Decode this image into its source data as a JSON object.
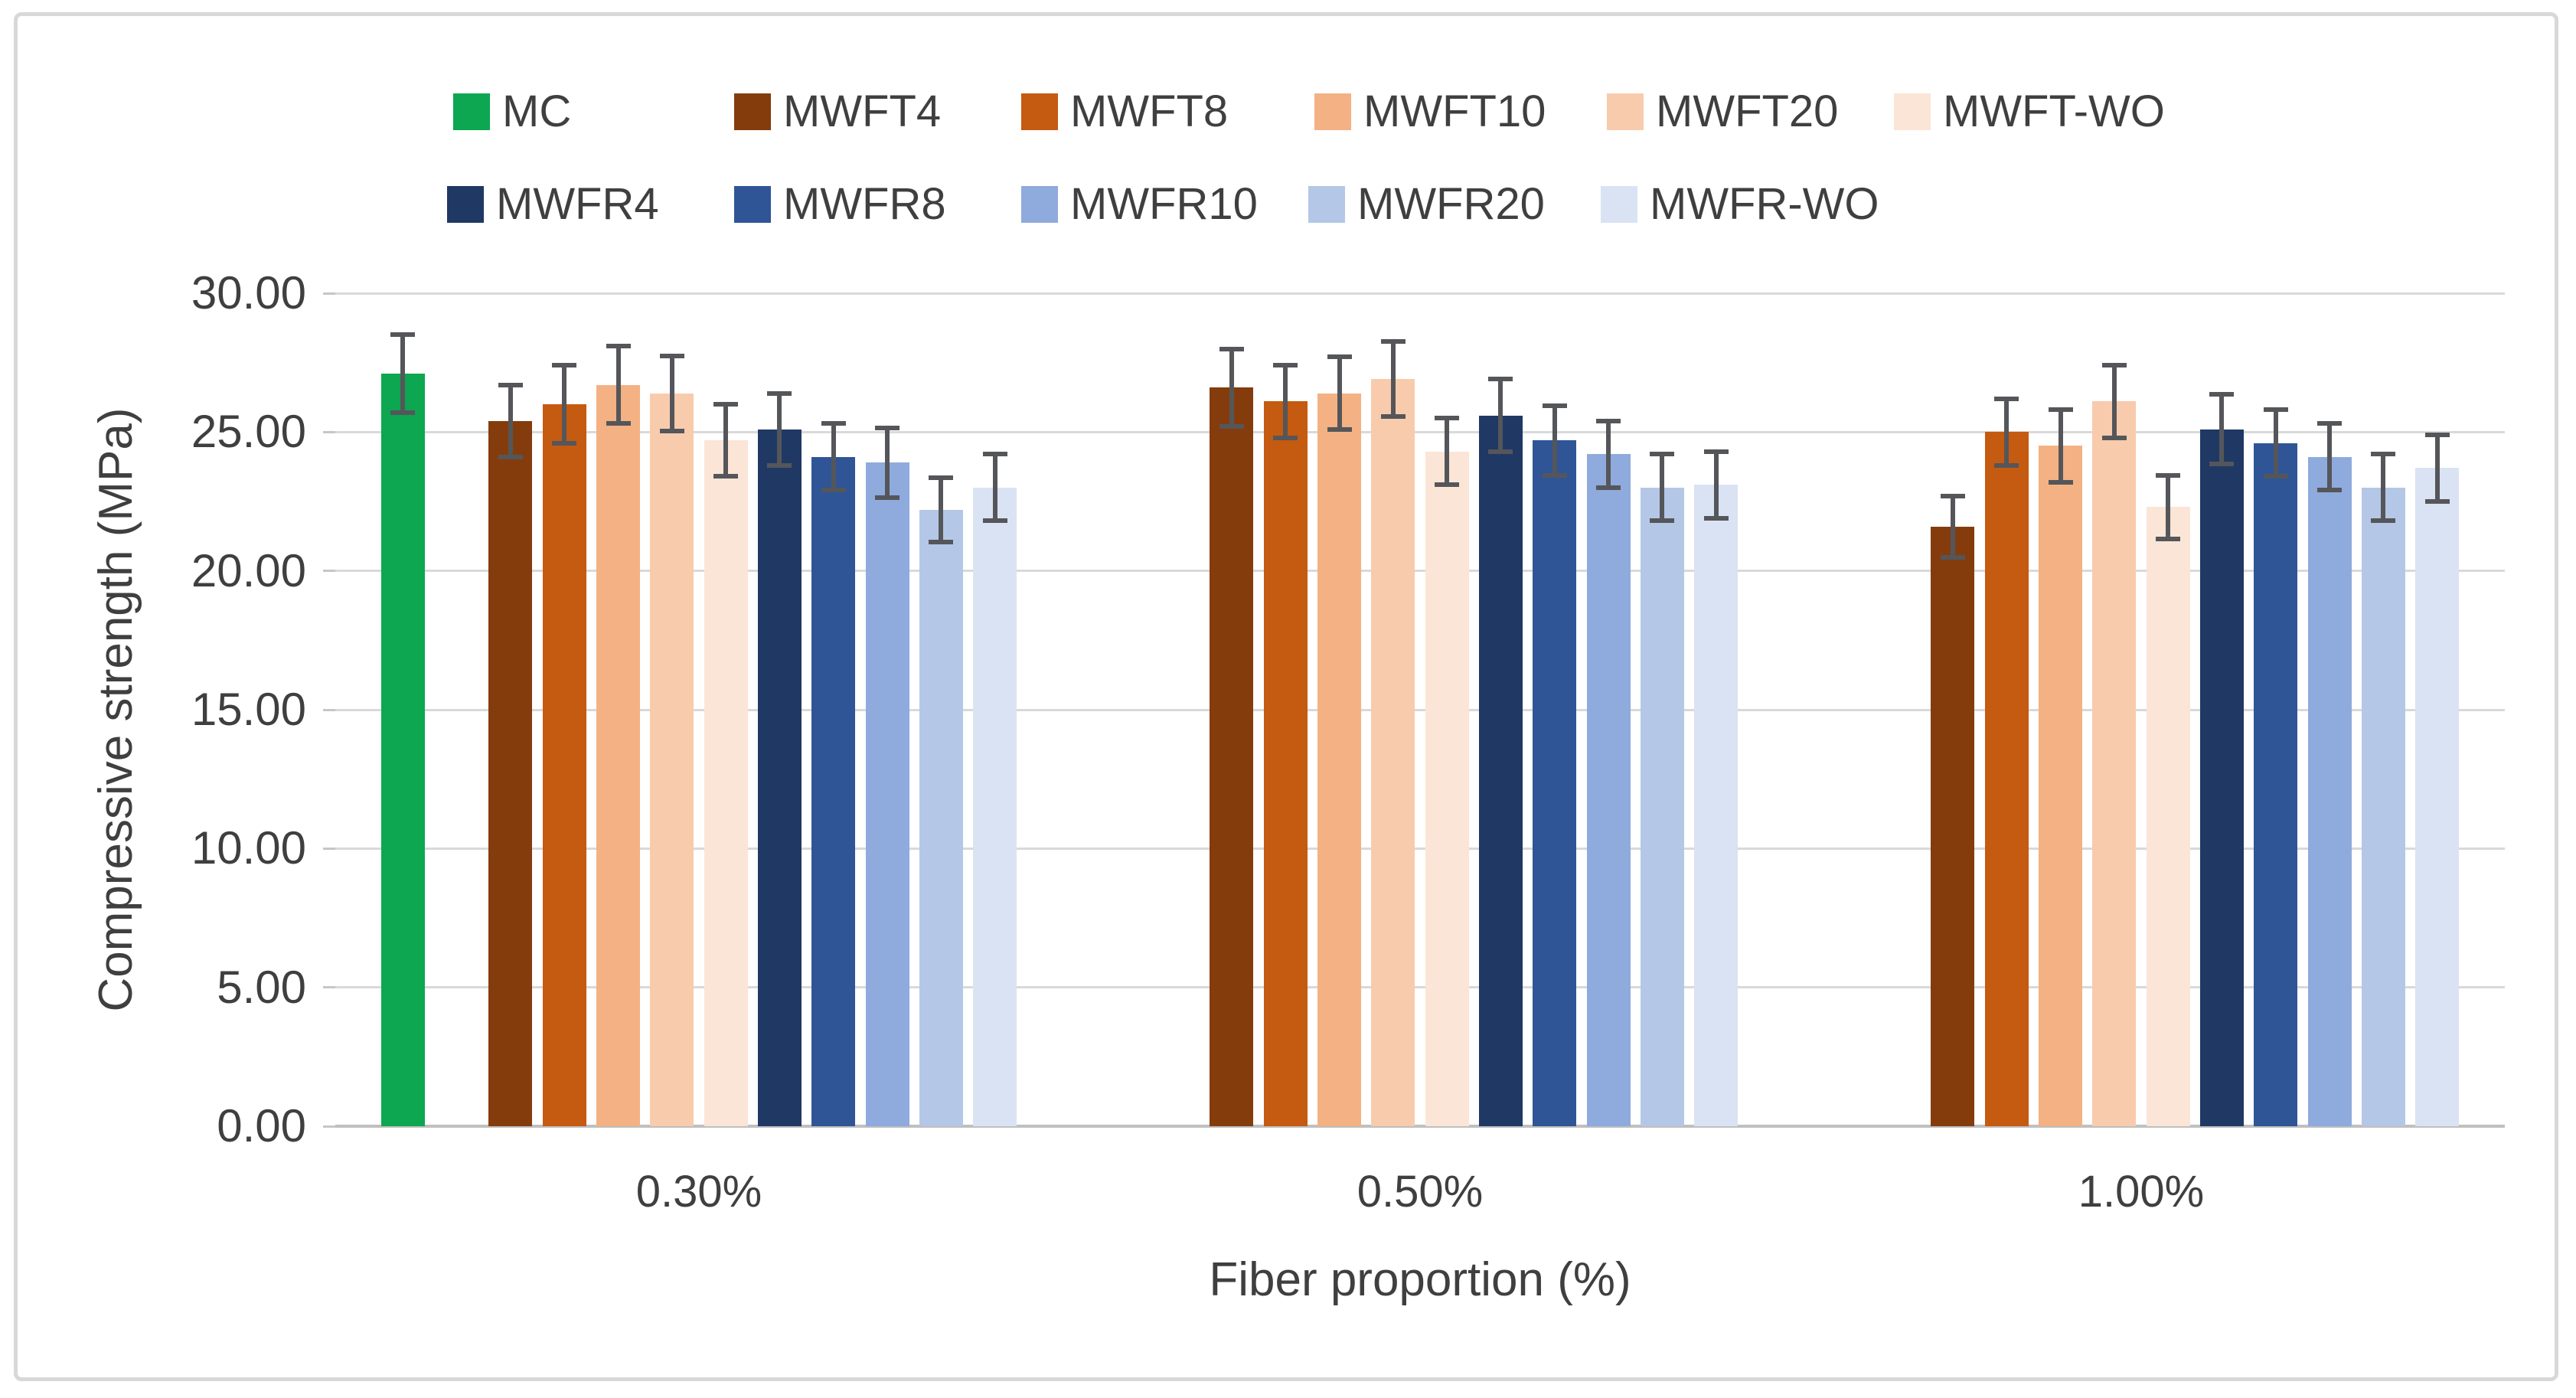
{
  "chart_data": {
    "type": "bar",
    "title": "",
    "xlabel": "Fiber proportion (%)",
    "ylabel": "Compressive strength (MPa)",
    "categories": [
      "0.30%",
      "0.50%",
      "1.00%"
    ],
    "y_tick_labels": [
      "30.00",
      "25.00",
      "20.00",
      "15.00",
      "10.00",
      "5.00",
      "0.00"
    ],
    "ylim": [
      0,
      30
    ],
    "y_tick_step": 5,
    "grid": true,
    "legend_position": "top",
    "legend_rows": [
      [
        "MC",
        "MWFT4",
        "MWFT8",
        "MWFT10",
        "MWFT20",
        "MWFT-WO"
      ],
      [
        "MWFR4",
        "MWFR8",
        "MWFR10",
        "MWFR20",
        "MWFR-WO"
      ]
    ],
    "series": [
      {
        "name": "MC",
        "color": "#0CA750",
        "values": [
          27.1,
          null,
          null
        ],
        "errors": [
          1.4,
          null,
          null
        ]
      },
      {
        "name": "MWFT4",
        "color": "#843C0C",
        "values": [
          25.4,
          26.6,
          21.6
        ],
        "errors": [
          1.3,
          1.4,
          1.1
        ]
      },
      {
        "name": "MWFT8",
        "color": "#C55A11",
        "values": [
          26.0,
          26.1,
          25.0
        ],
        "errors": [
          1.4,
          1.3,
          1.2
        ]
      },
      {
        "name": "MWFT10",
        "color": "#F4B183",
        "values": [
          26.7,
          26.4,
          24.5
        ],
        "errors": [
          1.4,
          1.3,
          1.3
        ]
      },
      {
        "name": "MWFT20",
        "color": "#F8CBAD",
        "values": [
          26.4,
          26.9,
          26.1
        ],
        "errors": [
          1.35,
          1.35,
          1.3
        ]
      },
      {
        "name": "MWFT-WO",
        "color": "#FBE5D6",
        "values": [
          24.7,
          24.3,
          22.3
        ],
        "errors": [
          1.3,
          1.2,
          1.15
        ]
      },
      {
        "name": "MWFR4",
        "color": "#203864",
        "values": [
          25.1,
          25.6,
          25.1
        ],
        "errors": [
          1.3,
          1.3,
          1.25
        ]
      },
      {
        "name": "MWFR8",
        "color": "#2F5597",
        "values": [
          24.1,
          24.7,
          24.6
        ],
        "errors": [
          1.2,
          1.25,
          1.2
        ]
      },
      {
        "name": "MWFR10",
        "color": "#8FAADC",
        "values": [
          23.9,
          24.2,
          24.1
        ],
        "errors": [
          1.25,
          1.2,
          1.2
        ]
      },
      {
        "name": "MWFR20",
        "color": "#B4C7E7",
        "values": [
          22.2,
          23.0,
          23.0
        ],
        "errors": [
          1.15,
          1.2,
          1.2
        ]
      },
      {
        "name": "MWFR-WO",
        "color": "#DAE3F3",
        "values": [
          23.0,
          23.1,
          23.7
        ],
        "errors": [
          1.2,
          1.2,
          1.2
        ]
      }
    ],
    "error_bar_color": "#55565A",
    "gridline_color": "#D9D9D9",
    "axis_line_color": "#BFBFBF",
    "text_color": "#3F3F3F"
  }
}
